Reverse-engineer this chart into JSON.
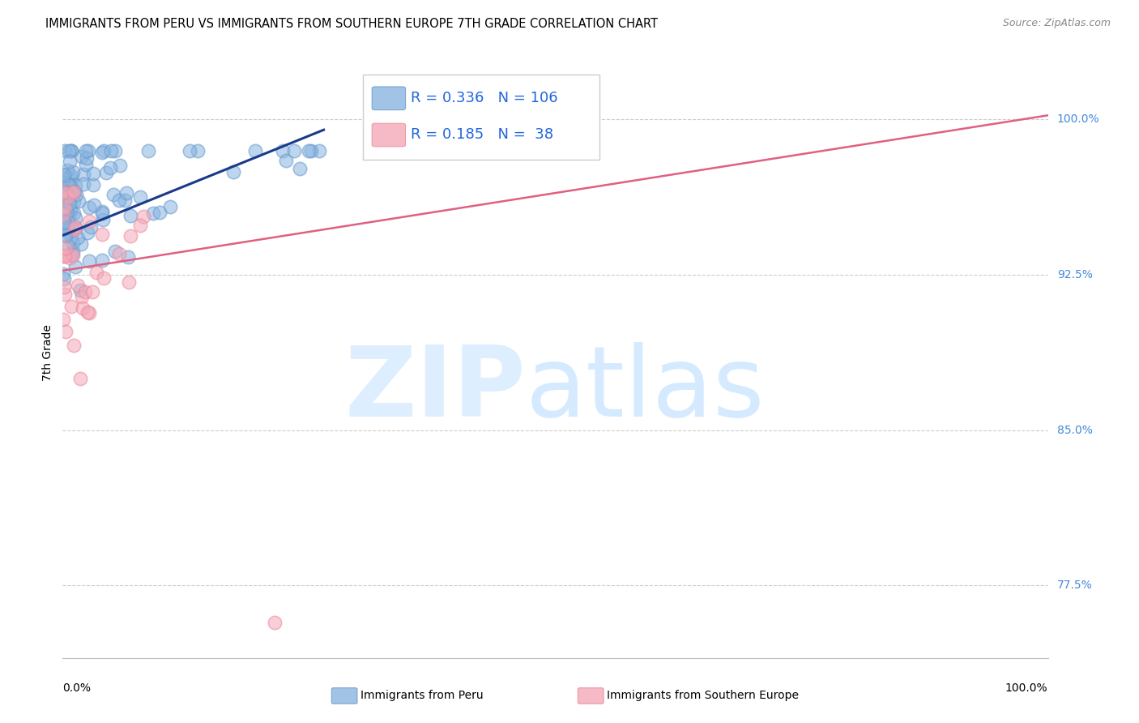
{
  "title": "IMMIGRANTS FROM PERU VS IMMIGRANTS FROM SOUTHERN EUROPE 7TH GRADE CORRELATION CHART",
  "source": "Source: ZipAtlas.com",
  "ylabel": "7th Grade",
  "ymin": 0.74,
  "ymax": 1.035,
  "xmin": 0.0,
  "xmax": 1.0,
  "ytick_vals": [
    0.775,
    0.85,
    0.925,
    1.0
  ],
  "ytick_labels": [
    "77.5%",
    "85.0%",
    "92.5%",
    "100.0%"
  ],
  "legend_peru_R": "0.336",
  "legend_peru_N": "106",
  "legend_se_R": "0.185",
  "legend_se_N": " 38",
  "blue_color": "#89B4E0",
  "blue_edge": "#6699CC",
  "pink_color": "#F4A8B8",
  "pink_edge": "#EE8898",
  "trendline_blue": "#1A3A8A",
  "trendline_pink": "#E06080",
  "bg_color": "#ffffff",
  "grid_color": "#cccccc",
  "right_label_color": "#4488DD",
  "source_color": "#888888",
  "blue_trend_x0": 0.0,
  "blue_trend_x1": 0.265,
  "blue_trend_y0": 0.944,
  "blue_trend_y1": 0.995,
  "pink_trend_x0": 0.0,
  "pink_trend_x1": 1.0,
  "pink_trend_y0": 0.927,
  "pink_trend_y1": 1.002
}
